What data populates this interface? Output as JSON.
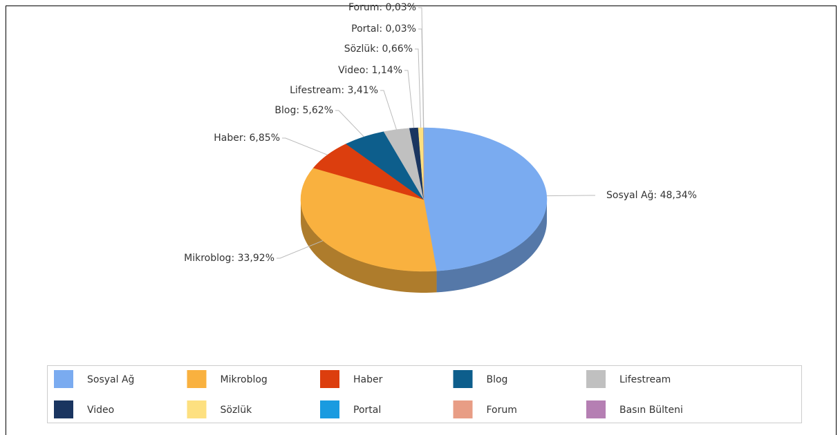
{
  "chart_data": {
    "type": "pie",
    "categories": [
      "Sosyal Ağ",
      "Mikroblog",
      "Haber",
      "Blog",
      "Lifestream",
      "Video",
      "Sözlük",
      "Portal",
      "Forum",
      "Basın Bülteni"
    ],
    "values": [
      48.34,
      33.92,
      6.85,
      5.62,
      3.41,
      1.14,
      0.66,
      0.03,
      0.03,
      0
    ],
    "value_labels": [
      "Sosyal Ağ: 48,34%",
      "Mikroblog: 33,92%",
      "Haber: 6,85%",
      "Blog: 5,62%",
      "Lifestream: 3,41%",
      "Video: 1,14%",
      "Sözlük: 0,66%",
      "Portal: 0,03%",
      "Forum: 0,03%",
      null
    ],
    "colors": [
      "#7aabf0",
      "#f9b13f",
      "#dc3e0e",
      "#0d5e8c",
      "#c0c0c0",
      "#1a3560",
      "#fde080",
      "#1a9be0",
      "#e89d85",
      "#b57fb3"
    ],
    "legend": "bottom"
  }
}
